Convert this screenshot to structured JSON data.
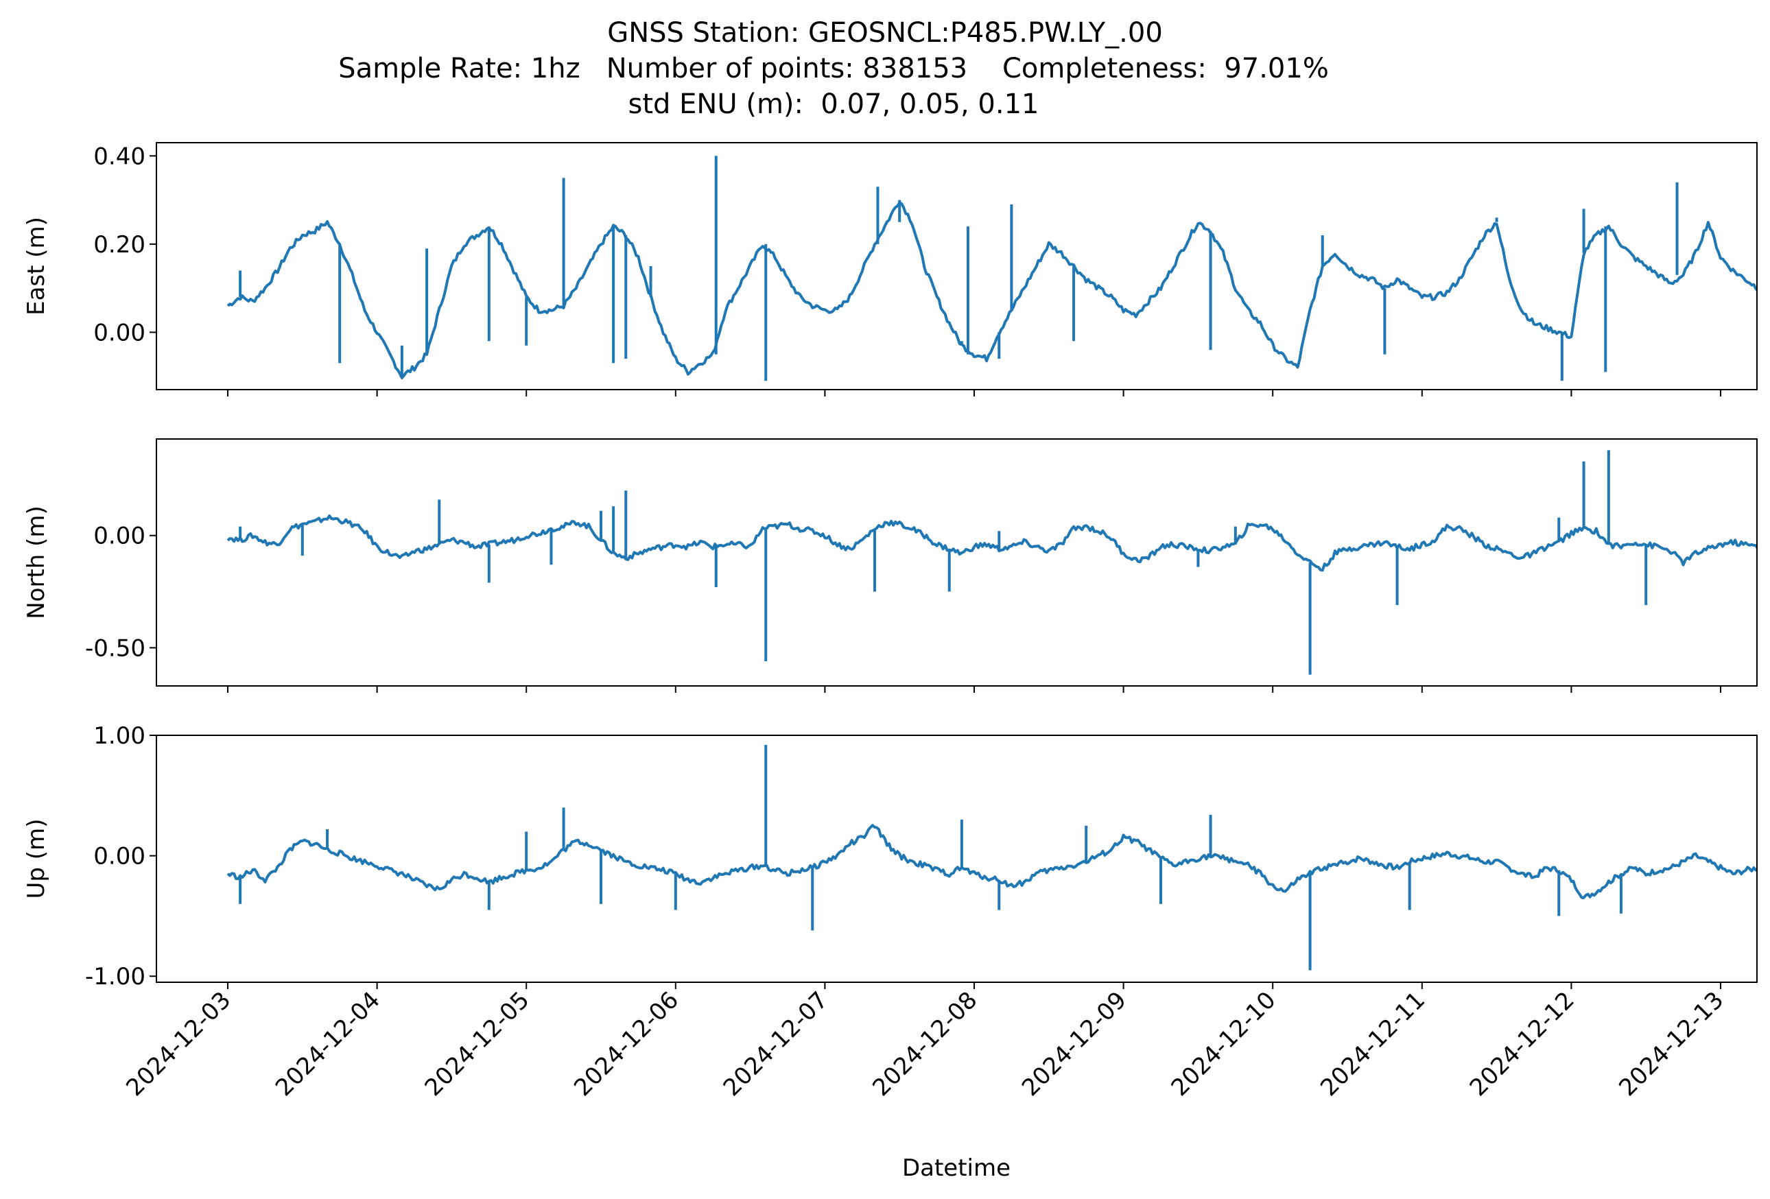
{
  "title": {
    "line1": "GNSS Station: GEOSNCL:P485.PW.LY_.00",
    "line2": "Sample Rate: 1hz   Number of points: 838153    Completeness:  97.01%",
    "line3": "std ENU (m):  0.07, 0.05, 0.11"
  },
  "colors": {
    "series": "#1f77b4",
    "axes": "#000000"
  },
  "chart_data": [
    {
      "type": "line",
      "ylabel": "East (m)",
      "ylim": [
        -0.13,
        0.43
      ],
      "yticks": [
        0.4,
        0.2,
        0.0
      ],
      "ytick_labels": [
        "0.40",
        "0.20",
        "0.00"
      ],
      "x_start": "2024-12-03 00:00",
      "x_end": "2024-12-12 18:00",
      "series": [
        {
          "step_hours": 2,
          "values": [
            0.06,
            0.08,
            0.07,
            0.1,
            0.14,
            0.19,
            0.22,
            0.23,
            0.25,
            0.2,
            0.13,
            0.05,
            0.0,
            -0.05,
            -0.1,
            -0.08,
            -0.05,
            0.05,
            0.15,
            0.2,
            0.22,
            0.24,
            0.2,
            0.14,
            0.08,
            0.05,
            0.05,
            0.06,
            0.1,
            0.15,
            0.2,
            0.24,
            0.22,
            0.17,
            0.08,
            0.0,
            -0.06,
            -0.09,
            -0.07,
            -0.05,
            0.05,
            0.1,
            0.15,
            0.2,
            0.17,
            0.12,
            0.08,
            0.06,
            0.05,
            0.05,
            0.08,
            0.14,
            0.2,
            0.25,
            0.3,
            0.25,
            0.15,
            0.08,
            0.02,
            -0.03,
            -0.05,
            -0.06,
            0.0,
            0.05,
            0.1,
            0.15,
            0.2,
            0.18,
            0.15,
            0.12,
            0.1,
            0.08,
            0.05,
            0.04,
            0.07,
            0.1,
            0.15,
            0.2,
            0.25,
            0.23,
            0.18,
            0.1,
            0.05,
            0.02,
            -0.03,
            -0.06,
            -0.08,
            0.05,
            0.15,
            0.18,
            0.15,
            0.13,
            0.12,
            0.1,
            0.12,
            0.1,
            0.08,
            0.08,
            0.09,
            0.12,
            0.17,
            0.22,
            0.25,
            0.12,
            0.05,
            0.02,
            0.01,
            0.0,
            -0.01,
            0.18,
            0.22,
            0.24,
            0.2,
            0.17,
            0.15,
            0.13,
            0.11,
            0.13,
            0.18,
            0.25,
            0.17,
            0.14,
            0.12,
            0.1,
            0.08,
            0.06,
            0.05,
            0.04,
            0.03,
            0.1,
            0.15,
            0.2,
            0.18,
            0.16,
            0.14,
            0.12,
            0.1,
            0.12,
            0.15,
            0.18,
            0.16,
            0.14,
            0.12,
            0.1,
            0.08,
            0.06,
            0.07,
            0.1,
            0.12,
            0.15,
            0.18,
            0.2,
            0.16,
            0.15,
            0.14,
            0.1,
            0.08,
            0.07,
            0.08,
            0.1,
            0.14,
            0.17,
            0.2,
            0.18,
            0.16,
            0.13,
            0.15,
            0.15,
            0.14,
            0.17,
            0.16,
            0.15,
            0.13,
            0.12,
            0.14,
            0.17,
            0.2,
            0.15,
            0.13,
            0.11,
            0.1,
            0.08,
            0.05,
            0.08,
            0.13,
            0.16,
            0.18,
            0.17,
            0.15,
            0.17,
            0.18,
            0.19,
            0.17,
            0.15,
            0.14,
            0.16,
            0.18,
            0.2,
            0.17,
            0.14,
            0.12,
            0.16,
            0.18,
            0.23,
            0.2,
            0.17,
            0.14,
            0.12,
            0.08,
            0.06,
            0.1,
            0.14,
            0.16,
            0.18,
            0.19,
            0.2,
            0.21,
            0.19,
            0.15,
            0.13,
            0.12,
            0.1,
            0.1,
            0.12,
            0.15,
            0.18,
            0.2,
            0.17,
            0.15,
            0.18,
            0.17,
            0.14,
            0.1,
            0.05,
            0.0,
            0.02,
            0.08,
            0.12,
            0.15,
            0.18,
            0.2,
            0.19,
            0.21,
            0.22,
            0.23,
            0.22,
            0.21,
            0.21,
            0.24,
            0.22
          ]
        }
      ],
      "spikes": [
        [
          "2024-12-03 02:00",
          0.14
        ],
        [
          "2024-12-03 18:00",
          -0.07
        ],
        [
          "2024-12-04 04:00",
          -0.03
        ],
        [
          "2024-12-04 08:00",
          0.19
        ],
        [
          "2024-12-04 18:00",
          -0.02
        ],
        [
          "2024-12-05 00:00",
          -0.03
        ],
        [
          "2024-12-05 06:00",
          0.35
        ],
        [
          "2024-12-05 14:00",
          -0.07
        ],
        [
          "2024-12-05 16:00",
          -0.06
        ],
        [
          "2024-12-05 20:00",
          0.15
        ],
        [
          "2024-12-06 06:30",
          0.4
        ],
        [
          "2024-12-06 14:30",
          0.2
        ],
        [
          "2024-12-06 14:30",
          -0.11
        ],
        [
          "2024-12-07 08:30",
          0.33
        ],
        [
          "2024-12-07 12:00",
          0.25
        ],
        [
          "2024-12-07 22:00",
          -0.02
        ],
        [
          "2024-12-07 23:00",
          0.24
        ],
        [
          "2024-12-08 04:00",
          -0.06
        ],
        [
          "2024-12-08 06:00",
          0.29
        ],
        [
          "2024-12-08 16:00",
          -0.02
        ],
        [
          "2024-12-09 14:00",
          -0.04
        ],
        [
          "2024-12-10 08:00",
          0.22
        ],
        [
          "2024-12-10 18:00",
          -0.05
        ],
        [
          "2024-12-11 12:00",
          0.26
        ],
        [
          "2024-12-11 22:30",
          -0.11
        ],
        [
          "2024-12-12 02:00",
          0.28
        ],
        [
          "2024-12-12 05:30",
          -0.09
        ],
        [
          "2024-12-12 17:00",
          0.34
        ]
      ]
    },
    {
      "type": "line",
      "ylabel": "North (m)",
      "ylim": [
        -0.67,
        0.43
      ],
      "yticks": [
        0.0,
        -0.5
      ],
      "ytick_labels": [
        "0.00",
        "-0.50"
      ],
      "x_start": "2024-12-03 00:00",
      "x_end": "2024-12-12 18:00",
      "series": [
        {
          "step_hours": 2,
          "values": [
            -0.01,
            -0.02,
            0.0,
            -0.03,
            -0.04,
            0.03,
            0.05,
            0.06,
            0.08,
            0.07,
            0.05,
            0.02,
            -0.05,
            -0.08,
            -0.1,
            -0.07,
            -0.06,
            -0.04,
            -0.02,
            -0.03,
            -0.05,
            -0.04,
            -0.03,
            -0.02,
            0.0,
            0.01,
            0.03,
            0.04,
            0.06,
            0.04,
            -0.02,
            -0.08,
            -0.1,
            -0.08,
            -0.06,
            -0.05,
            -0.04,
            -0.05,
            -0.03,
            -0.05,
            -0.04,
            -0.04,
            -0.05,
            0.03,
            0.04,
            0.05,
            0.03,
            0.02,
            0.0,
            -0.04,
            -0.06,
            -0.02,
            0.03,
            0.06,
            0.05,
            0.03,
            0.0,
            -0.04,
            -0.06,
            -0.08,
            -0.05,
            -0.04,
            -0.06,
            -0.05,
            -0.03,
            -0.05,
            -0.07,
            -0.04,
            0.03,
            0.04,
            0.02,
            -0.01,
            -0.08,
            -0.11,
            -0.1,
            -0.05,
            -0.04,
            -0.05,
            -0.06,
            -0.07,
            -0.05,
            -0.04,
            0.04,
            0.05,
            0.03,
            -0.02,
            -0.08,
            -0.12,
            -0.15,
            -0.08,
            -0.06,
            -0.05,
            -0.04,
            -0.03,
            -0.05,
            -0.06,
            -0.04,
            -0.02,
            0.04,
            0.03,
            0.0,
            -0.04,
            -0.06,
            -0.08,
            -0.1,
            -0.08,
            -0.05,
            -0.03,
            0.01,
            0.03,
            0.02,
            -0.04,
            -0.05,
            -0.03,
            -0.04,
            -0.05,
            -0.07,
            -0.12,
            -0.08,
            -0.06,
            -0.04,
            -0.03,
            -0.04,
            -0.05,
            -0.06,
            -0.03,
            0.01,
            0.03,
            0.04,
            0.0,
            -0.04,
            -0.06,
            -0.05,
            -0.03,
            -0.04,
            -0.05,
            -0.04,
            -0.02,
            0.0,
            0.02,
            0.04,
            0.0,
            -0.05,
            -0.08,
            -0.11,
            -0.08,
            -0.05,
            -0.03,
            -0.02,
            -0.05,
            -0.06,
            -0.04,
            -0.02,
            -0.01,
            -0.03,
            -0.04,
            -0.05,
            -0.04,
            -0.06,
            -0.03,
            0.03,
            0.05,
            0.04,
            0.03,
            0.02,
            -0.03,
            -0.08,
            -0.1,
            -0.07,
            -0.04,
            -0.05,
            -0.06,
            -0.05,
            -0.04,
            -0.06,
            -0.08,
            -0.05,
            -0.03,
            -0.02,
            -0.02,
            -0.03,
            -0.05,
            -0.03,
            -0.01,
            0.02,
            0.04,
            0.03,
            0.0,
            -0.02,
            -0.04,
            -0.05,
            -0.06,
            -0.03,
            -0.02,
            -0.01,
            0.01,
            0.03,
            0.04,
            0.03,
            0.01,
            0.0,
            0.02,
            0.01,
            0.0,
            -0.01,
            0.02,
            0.0,
            -0.02,
            -0.04,
            -0.05,
            -0.03,
            0.0,
            0.04,
            0.05,
            0.03,
            0.0,
            -0.03,
            -0.06,
            -0.07,
            -0.08,
            -0.06,
            -0.04,
            -0.07,
            -0.08,
            -0.06,
            -0.05,
            -0.04,
            -0.03
          ]
        }
      ],
      "spikes": [
        [
          "2024-12-03 02:00",
          0.04
        ],
        [
          "2024-12-03 12:00",
          -0.09
        ],
        [
          "2024-12-03 20:00",
          0.05
        ],
        [
          "2024-12-04 10:00",
          0.16
        ],
        [
          "2024-12-04 18:00",
          -0.21
        ],
        [
          "2024-12-05 04:00",
          -0.13
        ],
        [
          "2024-12-05 12:00",
          0.11
        ],
        [
          "2024-12-05 14:00",
          0.13
        ],
        [
          "2024-12-05 16:00",
          0.2
        ],
        [
          "2024-12-06 06:30",
          -0.23
        ],
        [
          "2024-12-06 14:30",
          -0.56
        ],
        [
          "2024-12-07 08:00",
          -0.25
        ],
        [
          "2024-12-07 20:00",
          -0.25
        ],
        [
          "2024-12-08 04:00",
          0.02
        ],
        [
          "2024-12-09 12:00",
          -0.14
        ],
        [
          "2024-12-09 18:00",
          0.04
        ],
        [
          "2024-12-10 06:00",
          -0.62
        ],
        [
          "2024-12-10 20:00",
          -0.31
        ],
        [
          "2024-12-11 22:00",
          0.08
        ],
        [
          "2024-12-12 02:00",
          0.33
        ],
        [
          "2024-12-12 06:00",
          0.38
        ],
        [
          "2024-12-12 12:00",
          -0.31
        ]
      ]
    },
    {
      "type": "line",
      "ylabel": "Up (m)",
      "ylim": [
        -1.05,
        1.0
      ],
      "yticks": [
        1.0,
        0.0,
        -1.0
      ],
      "ytick_labels": [
        "1.00",
        "0.00",
        "-1.00"
      ],
      "x_start": "2024-12-03 00:00",
      "x_end": "2024-12-12 18:00",
      "series": [
        {
          "step_hours": 2,
          "values": [
            -0.15,
            -0.18,
            -0.12,
            -0.2,
            -0.1,
            0.05,
            0.12,
            0.1,
            0.05,
            0.02,
            -0.02,
            -0.05,
            -0.08,
            -0.12,
            -0.15,
            -0.2,
            -0.25,
            -0.28,
            -0.2,
            -0.15,
            -0.18,
            -0.22,
            -0.18,
            -0.15,
            -0.12,
            -0.1,
            -0.05,
            0.05,
            0.12,
            0.1,
            0.05,
            0.0,
            -0.05,
            -0.08,
            -0.1,
            -0.12,
            -0.15,
            -0.2,
            -0.22,
            -0.18,
            -0.15,
            -0.12,
            -0.1,
            -0.08,
            -0.12,
            -0.15,
            -0.12,
            -0.1,
            -0.05,
            0.0,
            0.1,
            0.15,
            0.25,
            0.1,
            0.0,
            -0.05,
            -0.08,
            -0.12,
            -0.15,
            -0.1,
            -0.15,
            -0.18,
            -0.2,
            -0.25,
            -0.22,
            -0.15,
            -0.12,
            -0.1,
            -0.08,
            -0.05,
            0.0,
            0.05,
            0.15,
            0.12,
            0.05,
            -0.02,
            -0.08,
            -0.05,
            -0.02,
            0.0,
            -0.02,
            -0.04,
            -0.08,
            -0.15,
            -0.25,
            -0.3,
            -0.2,
            -0.15,
            -0.1,
            -0.08,
            -0.05,
            -0.02,
            -0.05,
            -0.08,
            -0.1,
            -0.05,
            -0.02,
            0.0,
            0.02,
            0.0,
            -0.02,
            -0.05,
            -0.05,
            -0.1,
            -0.15,
            -0.18,
            -0.1,
            -0.12,
            -0.2,
            -0.35,
            -0.3,
            -0.22,
            -0.15,
            -0.1,
            -0.15,
            -0.12,
            -0.1,
            -0.05,
            0.0,
            -0.05,
            -0.1,
            -0.15,
            -0.12,
            -0.1,
            -0.05,
            0.0,
            -0.02,
            -0.08,
            -0.15,
            -0.22,
            -0.3,
            -0.25,
            -0.18,
            -0.15,
            -0.1,
            -0.12,
            -0.08,
            -0.05,
            -0.1,
            -0.05,
            0.0,
            0.05,
            0.1,
            0.05,
            0.0,
            -0.05,
            -0.1,
            -0.15,
            -0.1,
            -0.05,
            0.0,
            0.05,
            0.05,
            -0.05,
            -0.1,
            -0.2,
            -0.25,
            -0.2,
            -0.15,
            -0.1,
            -0.05,
            -0.05,
            -0.1,
            -0.08,
            0.0,
            0.05,
            0.1,
            0.08,
            0.0,
            -0.05,
            -0.1,
            -0.15,
            -0.2,
            -0.15,
            -0.12,
            -0.1,
            -0.08,
            -0.12,
            -0.15,
            -0.12,
            -0.1,
            -0.08,
            -0.05,
            -0.02,
            0.0,
            0.05,
            0.1,
            0.15,
            0.2,
            0.15,
            0.05,
            -0.05,
            -0.1,
            -0.15,
            -0.12,
            -0.15,
            -0.2,
            -0.22,
            -0.2,
            -0.15,
            -0.12,
            -0.15,
            -0.2,
            -0.25,
            -0.3,
            -0.28,
            -0.25,
            -0.15,
            -0.1,
            -0.05,
            0.1,
            0.2,
            0.25,
            0.1,
            0.0,
            -0.05,
            -0.1,
            -0.15,
            -0.2,
            -0.25,
            -0.22,
            -0.15,
            -0.1,
            -0.05,
            -0.08,
            -0.15,
            -0.25,
            -0.3,
            -0.35,
            -0.3
          ]
        }
      ],
      "spikes": [
        [
          "2024-12-03 02:00",
          -0.4
        ],
        [
          "2024-12-03 16:00",
          0.22
        ],
        [
          "2024-12-04 18:00",
          -0.45
        ],
        [
          "2024-12-05 00:00",
          0.2
        ],
        [
          "2024-12-05 06:00",
          0.4
        ],
        [
          "2024-12-05 12:00",
          -0.4
        ],
        [
          "2024-12-06 00:00",
          -0.45
        ],
        [
          "2024-12-06 14:30",
          0.92
        ],
        [
          "2024-12-06 22:00",
          -0.62
        ],
        [
          "2024-12-07 22:00",
          0.3
        ],
        [
          "2024-12-08 04:00",
          -0.45
        ],
        [
          "2024-12-08 18:00",
          0.25
        ],
        [
          "2024-12-09 06:00",
          -0.4
        ],
        [
          "2024-12-09 14:00",
          0.34
        ],
        [
          "2024-12-10 06:00",
          -0.95
        ],
        [
          "2024-12-10 22:00",
          -0.45
        ],
        [
          "2024-12-11 22:00",
          -0.5
        ],
        [
          "2024-12-12 08:00",
          -0.48
        ]
      ]
    }
  ],
  "x_axis": {
    "label": "Datetime",
    "ticks": [
      "2024-12-03",
      "2024-12-04",
      "2024-12-05",
      "2024-12-06",
      "2024-12-07",
      "2024-12-08",
      "2024-12-09",
      "2024-12-10",
      "2024-12-11",
      "2024-12-12",
      "2024-12-13"
    ]
  }
}
